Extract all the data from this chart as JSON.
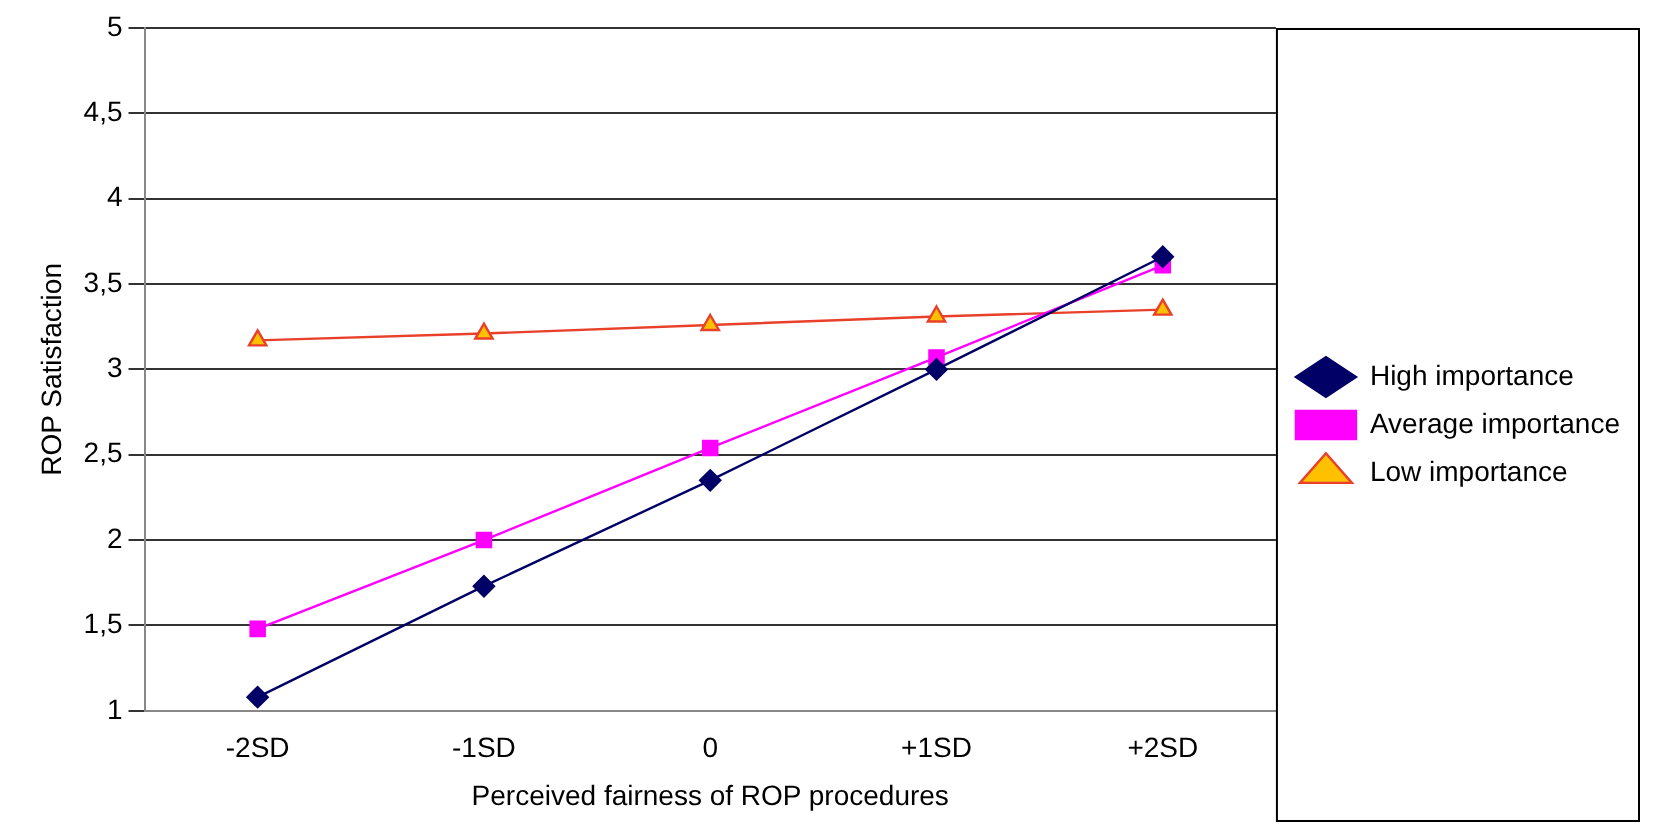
{
  "chart_data": {
    "type": "line",
    "xlabel": "Perceived fairness of ROP procedures",
    "ylabel": "ROP Satisfaction",
    "categories": [
      "-2SD",
      "-1SD",
      "0",
      "+1SD",
      "+2SD"
    ],
    "series": [
      {
        "name": "High importance",
        "color": "#000066",
        "marker": "diamond",
        "values": [
          1.08,
          1.73,
          2.35,
          3.0,
          3.66
        ]
      },
      {
        "name": "Average importance",
        "color": "#ff00ff",
        "marker": "square",
        "values": [
          1.48,
          2.0,
          2.54,
          3.07,
          3.61
        ]
      },
      {
        "name": "Low importance",
        "color": "#e8402a",
        "marker": "triangle",
        "values": [
          3.17,
          3.21,
          3.26,
          3.31,
          3.35
        ]
      }
    ],
    "ylim": [
      1,
      5
    ],
    "yticks": [
      1,
      {
        "value": 1.5,
        "label": "1,5"
      },
      2,
      {
        "value": 2.5,
        "label": "2,5"
      },
      3,
      {
        "value": 3.5,
        "label": "3,5"
      },
      4,
      {
        "value": 4.5,
        "label": "4,5"
      },
      5
    ],
    "grid": "y",
    "legend": "right",
    "line_style": "solid"
  }
}
